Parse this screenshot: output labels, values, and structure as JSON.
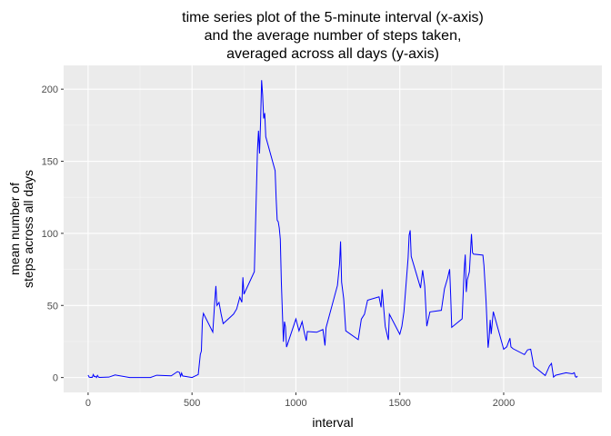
{
  "chart_data": {
    "type": "line",
    "title": "time series plot of the 5-minute interval (x-axis)\nand the average number of steps taken,\naveraged across all days (y-axis)",
    "x_label": "interval",
    "y_label": "mean number of\nsteps across all days",
    "color": "#0000ff",
    "grid": true,
    "xlim": [
      -117.75,
      2472.75
    ],
    "ylim": [
      -10.31,
      216.48
    ],
    "xticks": [
      0,
      500,
      1000,
      1500,
      2000
    ],
    "yticks": [
      0,
      50,
      100,
      150,
      200
    ],
    "x": [
      0,
      5,
      10,
      15,
      20,
      25,
      30,
      35,
      40,
      45,
      50,
      55,
      100,
      130,
      200,
      300,
      330,
      400,
      430,
      440,
      445,
      450,
      455,
      500,
      530,
      540,
      545,
      550,
      555,
      600,
      610,
      615,
      620,
      630,
      640,
      650,
      700,
      715,
      730,
      740,
      745,
      750,
      800,
      810,
      815,
      820,
      825,
      830,
      835,
      840,
      845,
      850,
      855,
      900,
      905,
      910,
      915,
      920,
      925,
      930,
      935,
      940,
      945,
      950,
      955,
      1000,
      1015,
      1030,
      1040,
      1050,
      1055,
      1100,
      1130,
      1140,
      1145,
      1200,
      1210,
      1215,
      1220,
      1230,
      1240,
      1300,
      1315,
      1330,
      1345,
      1400,
      1410,
      1415,
      1430,
      1445,
      1450,
      1500,
      1510,
      1520,
      1540,
      1545,
      1550,
      1555,
      1600,
      1610,
      1620,
      1630,
      1645,
      1700,
      1715,
      1730,
      1740,
      1745,
      1750,
      1800,
      1810,
      1815,
      1820,
      1825,
      1835,
      1845,
      1850,
      1855,
      1900,
      1905,
      1915,
      1925,
      1930,
      1935,
      1940,
      1950,
      2000,
      2015,
      2030,
      2035,
      2045,
      2100,
      2115,
      2130,
      2145,
      2200,
      2220,
      2230,
      2240,
      2250,
      2300,
      2330,
      2340,
      2345,
      2350,
      2355
    ],
    "values": [
      1.7,
      0.3,
      0.1,
      0.2,
      0.1,
      2.1,
      0.5,
      0.9,
      0,
      1.5,
      0.3,
      0.1,
      0.3,
      1.8,
      0,
      0,
      1.6,
      1.2,
      4.1,
      3.5,
      0.8,
      3.1,
      1.1,
      0,
      2.1,
      16.0,
      18.3,
      39.5,
      44.5,
      31.5,
      53.8,
      63.5,
      50,
      52.1,
      44.1,
      37.4,
      44,
      47.6,
      55.7,
      52.2,
      69.5,
      57.8,
      73.4,
      129.4,
      157.5,
      171.2,
      155.4,
      177.3,
      206.2,
      195.9,
      179.6,
      183.4,
      167.0,
      143.5,
      124.0,
      109.1,
      108.1,
      103.7,
      95.9,
      66.2,
      45.2,
      24.8,
      38.8,
      35.0,
      21.1,
      40.6,
      32.4,
      38.8,
      31.5,
      25.5,
      31.9,
      31.4,
      33.3,
      22.2,
      34.5,
      63.9,
      78.6,
      94.4,
      66.2,
      54.7,
      32.4,
      26.3,
      40.5,
      43.9,
      53.6,
      56.0,
      48.7,
      61.2,
      35.4,
      26.1,
      43.9,
      30.0,
      35.5,
      45.7,
      82.9,
      98.7,
      102.1,
      84.0,
      62.1,
      74.5,
      63.2,
      35.6,
      45.5,
      46.6,
      61.5,
      68.9,
      75.1,
      56.5,
      34.8,
      40.7,
      74.7,
      85.3,
      59.3,
      67.8,
      73.4,
      99.5,
      86.6,
      85.6,
      84.9,
      77.8,
      53.5,
      20.7,
      27.4,
      40.0,
      30.2,
      45.7,
      19.6,
      21.3,
      27.3,
      21.3,
      20.0,
      15.9,
      19.2,
      19.6,
      7.8,
      1.4,
      7.9,
      9.8,
      0.3,
      1.6,
      3.3,
      2.6,
      3.3,
      0.6,
      0.2,
      1.1
    ]
  }
}
